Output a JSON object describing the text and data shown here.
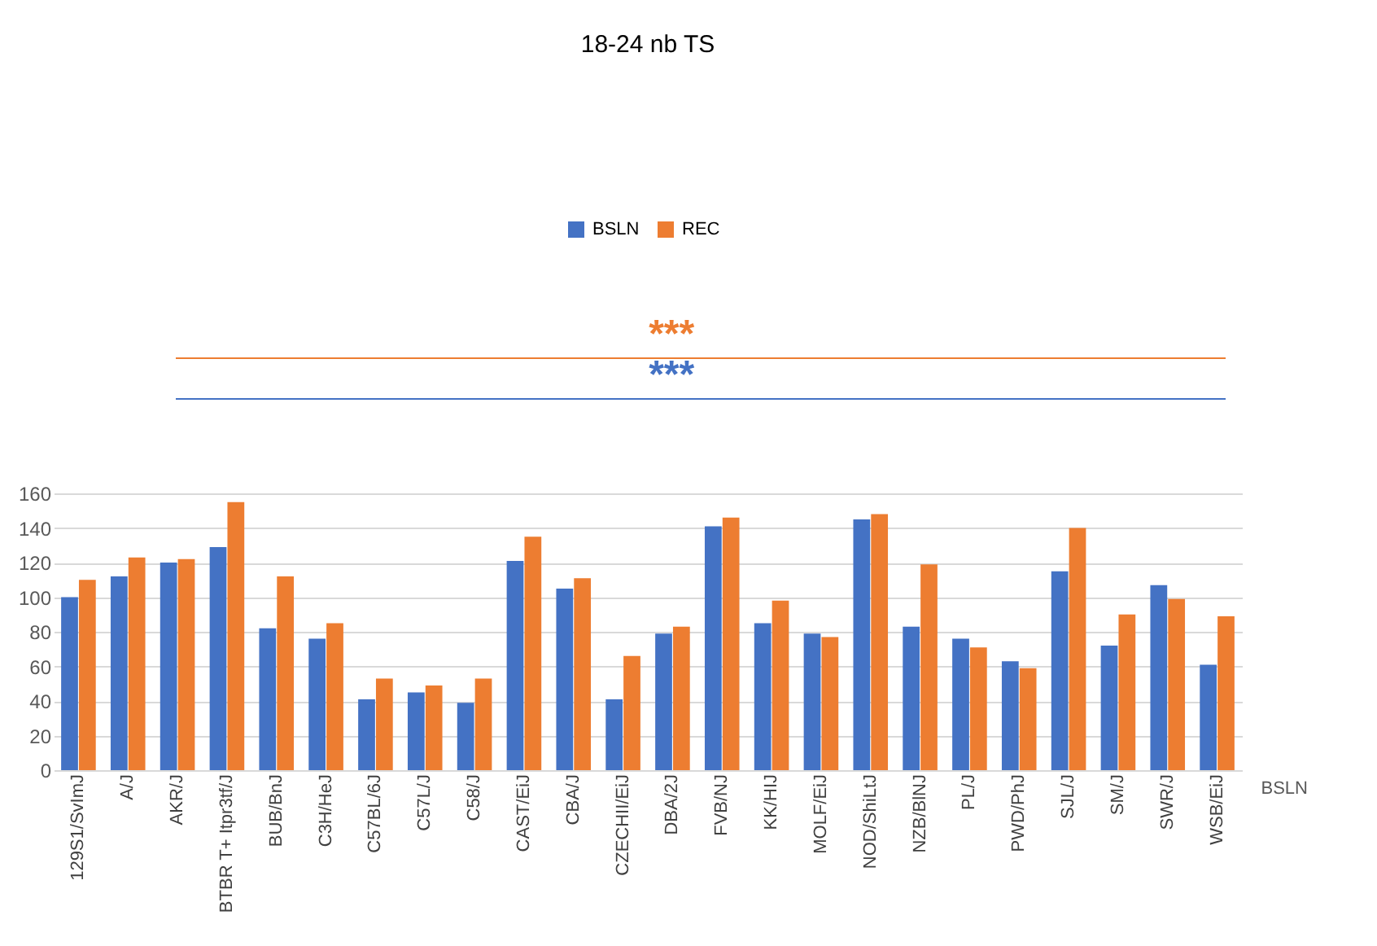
{
  "chart_data": {
    "type": "bar",
    "title": "18-24 nb TS",
    "xlabel": "BSLN",
    "categories": [
      "129S1/SvImJ",
      "A/J",
      "AKR/J",
      "BTBR T+ Itpr3tf/J",
      "BUB/BnJ",
      "C3H/HeJ",
      "C57BL/6J",
      "C57L/J",
      "C58/J",
      "CAST/EiJ",
      "CBA/J",
      "CZECHII/EiJ",
      "DBA/2J",
      "FVB/NJ",
      "KK/HIJ",
      "MOLF/EiJ",
      "NOD/ShiLtJ",
      "NZB/BlNJ",
      "PL/J",
      "PWD/PhJ",
      "SJL/J",
      "SM/J",
      "SWR/J",
      "WSB/EiJ"
    ],
    "series": [
      {
        "name": "BSLN",
        "color": "#4472c4",
        "values": [
          100,
          112,
          120,
          129,
          82,
          76,
          41,
          45,
          39,
          121,
          105,
          41,
          79,
          141,
          85,
          79,
          145,
          83,
          76,
          63,
          115,
          72,
          107,
          61
        ]
      },
      {
        "name": "REC",
        "color": "#ed7d31",
        "values": [
          110,
          123,
          122,
          155,
          112,
          85,
          53,
          49,
          53,
          135,
          111,
          66,
          83,
          146,
          98,
          77,
          148,
          119,
          71,
          59,
          140,
          90,
          99,
          89
        ]
      }
    ],
    "annotations": [
      "***",
      "***"
    ],
    "ylim": [
      0,
      160
    ],
    "yticks": [
      0,
      20,
      40,
      60,
      80,
      100,
      120,
      140,
      160
    ],
    "grid": "y",
    "legend": "top"
  }
}
